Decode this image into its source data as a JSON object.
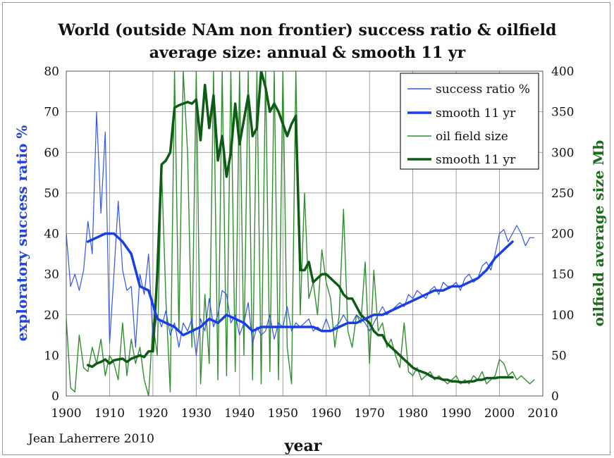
{
  "colors": {
    "success_thin": "#3355ee",
    "success_smooth": "#1a3ee6",
    "oil_thin": "#2f8f2f",
    "oil_smooth": "#0f5a14",
    "grid": "#888888",
    "text": "#111111",
    "ylabel_left": "#2244dd",
    "ylabel_right": "#1b6b1b"
  },
  "chart_data": {
    "type": "line",
    "title_line1": "World (outside NAm non frontier) success ratio & oilfield",
    "title_line2": "average size: annual & smooth 11 yr",
    "xlabel": "year",
    "ylabel_left": "exploratory success ratio %",
    "ylabel_right": "oilfield average size Mb",
    "credit": "Jean Laherrere 2010",
    "xlim": [
      1900,
      2010
    ],
    "ylim_left": [
      0,
      80
    ],
    "ylim_right": [
      0,
      400
    ],
    "x_ticks": [
      "1900",
      "1910",
      "1920",
      "1930",
      "1940",
      "1950",
      "1960",
      "1970",
      "1980",
      "1990",
      "2000",
      "2010"
    ],
    "y_left_ticks": [
      "0",
      "10",
      "20",
      "30",
      "40",
      "50",
      "60",
      "70",
      "80"
    ],
    "y_right_ticks": [
      "0",
      "50",
      "100",
      "150",
      "200",
      "250",
      "300",
      "350",
      "400"
    ],
    "grid": true,
    "legend_position": "top-right",
    "series": [
      {
        "name": "success ratio %",
        "axis": "left",
        "style": "thin",
        "x": [
          1900,
          1901,
          1902,
          1903,
          1904,
          1905,
          1906,
          1907,
          1908,
          1909,
          1910,
          1911,
          1912,
          1913,
          1914,
          1915,
          1916,
          1917,
          1918,
          1919,
          1920,
          1921,
          1922,
          1923,
          1924,
          1925,
          1926,
          1927,
          1928,
          1929,
          1930,
          1931,
          1932,
          1933,
          1934,
          1935,
          1936,
          1937,
          1938,
          1939,
          1940,
          1941,
          1942,
          1943,
          1944,
          1945,
          1946,
          1947,
          1948,
          1949,
          1950,
          1951,
          1952,
          1953,
          1954,
          1955,
          1956,
          1957,
          1958,
          1959,
          1960,
          1961,
          1962,
          1963,
          1964,
          1965,
          1966,
          1967,
          1968,
          1969,
          1970,
          1971,
          1972,
          1973,
          1974,
          1975,
          1976,
          1977,
          1978,
          1979,
          1980,
          1981,
          1982,
          1983,
          1984,
          1985,
          1986,
          1987,
          1988,
          1989,
          1990,
          1991,
          1992,
          1993,
          1994,
          1995,
          1996,
          1997,
          1998,
          1999,
          2000,
          2001,
          2002,
          2003,
          2004,
          2005,
          2006,
          2007,
          2008
        ],
        "values": [
          40,
          27,
          30,
          26,
          31,
          43,
          35,
          70,
          45,
          65,
          13,
          30,
          48,
          31,
          26,
          27,
          12,
          30,
          25,
          35,
          14,
          20,
          17,
          21,
          15,
          18,
          12,
          18,
          16,
          19,
          10,
          19,
          16,
          24,
          17,
          20,
          26,
          25,
          18,
          20,
          15,
          18,
          23,
          13,
          17,
          15,
          16,
          20,
          14,
          18,
          17,
          22,
          16,
          18,
          17,
          18,
          19,
          16,
          17,
          16,
          19,
          16,
          17,
          18,
          20,
          18,
          18,
          20,
          19,
          18,
          16,
          18,
          20,
          22,
          20,
          21,
          22,
          23,
          22,
          25,
          24,
          26,
          25,
          24,
          26,
          27,
          25,
          28,
          27,
          27,
          28,
          26,
          29,
          30,
          28,
          29,
          32,
          33,
          31,
          35,
          40,
          41,
          38,
          40,
          42,
          40,
          37,
          39,
          39
        ]
      },
      {
        "name": "smooth 11 yr",
        "axis": "left",
        "style": "thick",
        "x": [
          1905,
          1907,
          1909,
          1911,
          1913,
          1915,
          1917,
          1919,
          1921,
          1923,
          1925,
          1927,
          1929,
          1931,
          1933,
          1935,
          1937,
          1939,
          1941,
          1943,
          1945,
          1947,
          1949,
          1951,
          1953,
          1955,
          1957,
          1959,
          1961,
          1963,
          1965,
          1967,
          1969,
          1971,
          1973,
          1975,
          1977,
          1979,
          1981,
          1983,
          1985,
          1987,
          1989,
          1991,
          1993,
          1995,
          1997,
          1999,
          2001,
          2003
        ],
        "values": [
          38,
          39,
          40,
          40,
          38,
          35,
          27,
          26,
          19,
          18,
          17,
          15,
          16,
          17,
          19,
          18,
          20,
          19,
          18,
          16,
          17,
          17,
          17,
          17,
          17,
          17,
          17,
          16,
          16,
          17,
          18,
          18,
          19,
          20,
          20,
          21,
          22,
          23,
          24,
          25,
          26,
          26,
          27,
          27,
          28,
          29,
          31,
          34,
          36,
          38
        ]
      },
      {
        "name": "oil field size",
        "axis": "right",
        "style": "thin",
        "x": [
          1900,
          1901,
          1902,
          1903,
          1904,
          1905,
          1906,
          1907,
          1908,
          1909,
          1910,
          1911,
          1912,
          1913,
          1914,
          1915,
          1916,
          1917,
          1918,
          1919,
          1920,
          1921,
          1922,
          1923,
          1924,
          1925,
          1926,
          1927,
          1928,
          1929,
          1930,
          1931,
          1932,
          1933,
          1934,
          1935,
          1936,
          1937,
          1938,
          1939,
          1940,
          1941,
          1942,
          1943,
          1944,
          1945,
          1946,
          1947,
          1948,
          1949,
          1950,
          1951,
          1952,
          1953,
          1954,
          1955,
          1956,
          1957,
          1958,
          1959,
          1960,
          1961,
          1962,
          1963,
          1964,
          1965,
          1966,
          1967,
          1968,
          1969,
          1970,
          1971,
          1972,
          1973,
          1974,
          1975,
          1976,
          1977,
          1978,
          1979,
          1980,
          1981,
          1982,
          1983,
          1984,
          1985,
          1986,
          1987,
          1988,
          1989,
          1990,
          1991,
          1992,
          1993,
          1994,
          1995,
          1996,
          1997,
          1998,
          1999,
          2000,
          2001,
          2002,
          2003,
          2004,
          2005,
          2006,
          2007,
          2008
        ],
        "values": [
          95,
          10,
          5,
          75,
          35,
          30,
          60,
          40,
          70,
          25,
          50,
          40,
          20,
          90,
          25,
          70,
          40,
          60,
          20,
          0,
          90,
          50,
          280,
          120,
          5,
          400,
          80,
          400,
          300,
          60,
          400,
          15,
          125,
          40,
          400,
          20,
          400,
          25,
          400,
          30,
          400,
          50,
          400,
          20,
          400,
          15,
          400,
          30,
          400,
          20,
          400,
          60,
          15,
          400,
          100,
          250,
          120,
          140,
          100,
          180,
          140,
          120,
          60,
          100,
          230,
          80,
          60,
          100,
          90,
          165,
          40,
          155,
          80,
          90,
          60,
          70,
          50,
          35,
          90,
          30,
          25,
          35,
          20,
          25,
          30,
          20,
          25,
          20,
          15,
          20,
          25,
          15,
          20,
          15,
          25,
          20,
          30,
          15,
          20,
          25,
          45,
          40,
          25,
          30,
          20,
          25,
          20,
          15,
          20
        ]
      },
      {
        "name": "smooth 11 yr",
        "axis": "right",
        "style": "thick",
        "x": [
          1905,
          1906,
          1907,
          1908,
          1909,
          1910,
          1911,
          1912,
          1913,
          1914,
          1915,
          1916,
          1917,
          1918,
          1919,
          1920,
          1921,
          1922,
          1923,
          1924,
          1925,
          1926,
          1927,
          1928,
          1929,
          1930,
          1931,
          1932,
          1933,
          1934,
          1935,
          1936,
          1937,
          1938,
          1939,
          1940,
          1941,
          1942,
          1943,
          1944,
          1945,
          1946,
          1947,
          1948,
          1949,
          1950,
          1951,
          1952,
          1953,
          1954,
          1955,
          1956,
          1957,
          1958,
          1959,
          1960,
          1961,
          1962,
          1963,
          1964,
          1965,
          1966,
          1967,
          1968,
          1969,
          1970,
          1971,
          1972,
          1973,
          1974,
          1975,
          1976,
          1977,
          1978,
          1979,
          1980,
          1981,
          1982,
          1983,
          1984,
          1985,
          1986,
          1987,
          1988,
          1989,
          1990,
          1991,
          1992,
          1993,
          1994,
          1995,
          1996,
          1997,
          1998,
          1999,
          2000,
          2001,
          2002,
          2003
        ],
        "values": [
          38,
          36,
          40,
          42,
          45,
          40,
          44,
          45,
          46,
          42,
          46,
          48,
          50,
          48,
          55,
          55,
          150,
          285,
          290,
          300,
          355,
          358,
          360,
          362,
          360,
          365,
          315,
          383,
          330,
          370,
          290,
          320,
          270,
          300,
          360,
          310,
          340,
          370,
          320,
          330,
          400,
          380,
          350,
          360,
          350,
          335,
          320,
          335,
          345,
          155,
          155,
          165,
          140,
          145,
          150,
          150,
          145,
          140,
          135,
          125,
          120,
          120,
          110,
          100,
          95,
          90,
          80,
          75,
          75,
          65,
          60,
          55,
          50,
          45,
          40,
          35,
          32,
          30,
          28,
          25,
          22,
          22,
          20,
          20,
          18,
          18,
          17,
          17,
          18,
          18,
          20,
          20,
          22,
          22,
          22,
          23,
          23,
          23,
          23
        ]
      }
    ]
  }
}
